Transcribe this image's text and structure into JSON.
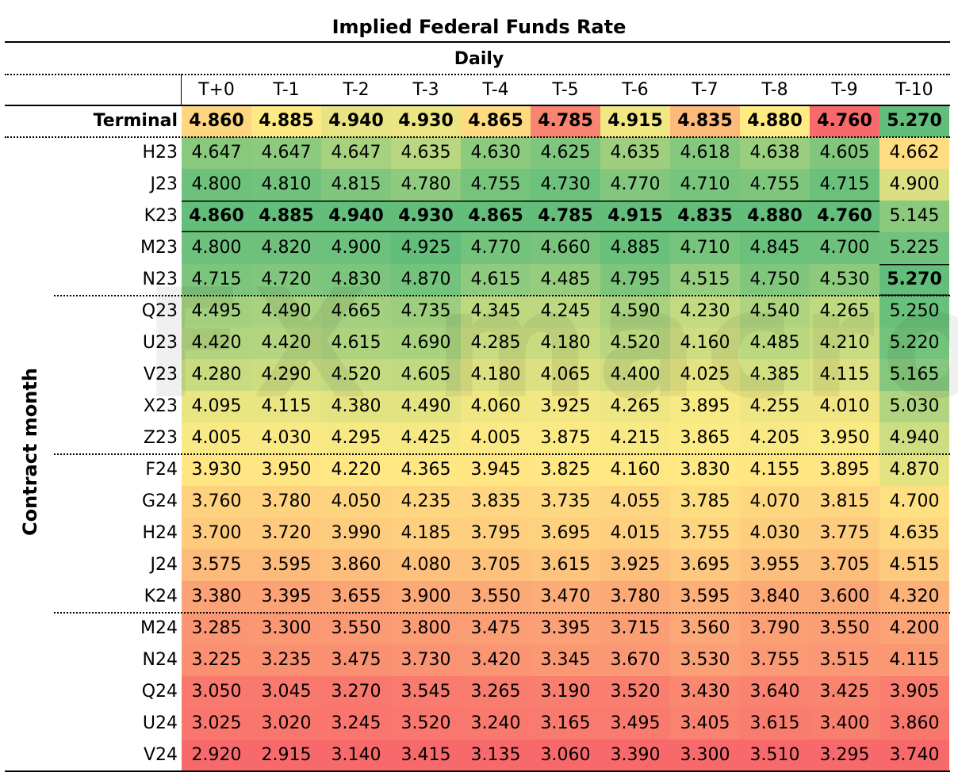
{
  "chart_data": {
    "type": "heatmap",
    "title": "Implied Federal Funds Rate",
    "subtitle": "Daily",
    "ylabel": "Contract month",
    "watermark": "FX macro",
    "columns": [
      "T+0",
      "T-1",
      "T-2",
      "T-3",
      "T-4",
      "T-5",
      "T-6",
      "T-7",
      "T-8",
      "T-9",
      "T-10"
    ],
    "rows": [
      {
        "label": "Terminal",
        "values": [
          "4.860",
          "4.885",
          "4.940",
          "4.930",
          "4.865",
          "4.785",
          "4.915",
          "4.835",
          "4.880",
          "4.760",
          "5.270"
        ]
      },
      {
        "label": "H23",
        "values": [
          "4.647",
          "4.647",
          "4.647",
          "4.635",
          "4.630",
          "4.625",
          "4.635",
          "4.618",
          "4.638",
          "4.605",
          "4.662"
        ]
      },
      {
        "label": "J23",
        "values": [
          "4.800",
          "4.810",
          "4.815",
          "4.780",
          "4.755",
          "4.730",
          "4.770",
          "4.710",
          "4.755",
          "4.715",
          "4.900"
        ]
      },
      {
        "label": "K23",
        "values": [
          "4.860",
          "4.885",
          "4.940",
          "4.930",
          "4.865",
          "4.785",
          "4.915",
          "4.835",
          "4.880",
          "4.760",
          "5.145"
        ]
      },
      {
        "label": "M23",
        "values": [
          "4.800",
          "4.820",
          "4.900",
          "4.925",
          "4.770",
          "4.660",
          "4.885",
          "4.710",
          "4.845",
          "4.700",
          "5.225"
        ]
      },
      {
        "label": "N23",
        "values": [
          "4.715",
          "4.720",
          "4.830",
          "4.870",
          "4.615",
          "4.485",
          "4.795",
          "4.515",
          "4.750",
          "4.530",
          "5.270"
        ]
      },
      {
        "label": "Q23",
        "values": [
          "4.495",
          "4.490",
          "4.665",
          "4.735",
          "4.345",
          "4.245",
          "4.590",
          "4.230",
          "4.540",
          "4.265",
          "5.250"
        ]
      },
      {
        "label": "U23",
        "values": [
          "4.420",
          "4.420",
          "4.615",
          "4.690",
          "4.285",
          "4.180",
          "4.520",
          "4.160",
          "4.485",
          "4.210",
          "5.220"
        ]
      },
      {
        "label": "V23",
        "values": [
          "4.280",
          "4.290",
          "4.520",
          "4.605",
          "4.180",
          "4.065",
          "4.400",
          "4.025",
          "4.385",
          "4.115",
          "5.165"
        ]
      },
      {
        "label": "X23",
        "values": [
          "4.095",
          "4.115",
          "4.380",
          "4.490",
          "4.060",
          "3.925",
          "4.265",
          "3.895",
          "4.255",
          "4.010",
          "5.030"
        ]
      },
      {
        "label": "Z23",
        "values": [
          "4.005",
          "4.030",
          "4.295",
          "4.425",
          "4.005",
          "3.875",
          "4.215",
          "3.865",
          "4.205",
          "3.950",
          "4.940"
        ]
      },
      {
        "label": "F24",
        "values": [
          "3.930",
          "3.950",
          "4.220",
          "4.365",
          "3.945",
          "3.825",
          "4.160",
          "3.830",
          "4.155",
          "3.895",
          "4.870"
        ]
      },
      {
        "label": "G24",
        "values": [
          "3.760",
          "3.780",
          "4.050",
          "4.235",
          "3.835",
          "3.735",
          "4.055",
          "3.785",
          "4.070",
          "3.815",
          "4.700"
        ]
      },
      {
        "label": "H24",
        "values": [
          "3.700",
          "3.720",
          "3.990",
          "4.185",
          "3.795",
          "3.695",
          "4.015",
          "3.755",
          "4.030",
          "3.775",
          "4.635"
        ]
      },
      {
        "label": "J24",
        "values": [
          "3.575",
          "3.595",
          "3.860",
          "4.080",
          "3.705",
          "3.615",
          "3.925",
          "3.695",
          "3.955",
          "3.705",
          "4.515"
        ]
      },
      {
        "label": "K24",
        "values": [
          "3.380",
          "3.395",
          "3.655",
          "3.900",
          "3.550",
          "3.470",
          "3.780",
          "3.595",
          "3.840",
          "3.600",
          "4.320"
        ]
      },
      {
        "label": "M24",
        "values": [
          "3.285",
          "3.300",
          "3.550",
          "3.800",
          "3.475",
          "3.395",
          "3.715",
          "3.560",
          "3.790",
          "3.550",
          "4.200"
        ]
      },
      {
        "label": "N24",
        "values": [
          "3.225",
          "3.235",
          "3.475",
          "3.730",
          "3.420",
          "3.345",
          "3.670",
          "3.530",
          "3.755",
          "3.515",
          "4.115"
        ]
      },
      {
        "label": "Q24",
        "values": [
          "3.050",
          "3.045",
          "3.270",
          "3.545",
          "3.265",
          "3.190",
          "3.520",
          "3.430",
          "3.640",
          "3.425",
          "3.905"
        ]
      },
      {
        "label": "U24",
        "values": [
          "3.025",
          "3.020",
          "3.245",
          "3.520",
          "3.240",
          "3.165",
          "3.495",
          "3.405",
          "3.615",
          "3.400",
          "3.860"
        ]
      },
      {
        "label": "V24",
        "values": [
          "2.920",
          "2.915",
          "3.140",
          "3.415",
          "3.135",
          "3.060",
          "3.390",
          "3.300",
          "3.510",
          "3.295",
          "3.740"
        ]
      }
    ],
    "colors": {
      "low": "#f8696b",
      "mid": "#ffeb84",
      "high": "#63be7b"
    }
  }
}
